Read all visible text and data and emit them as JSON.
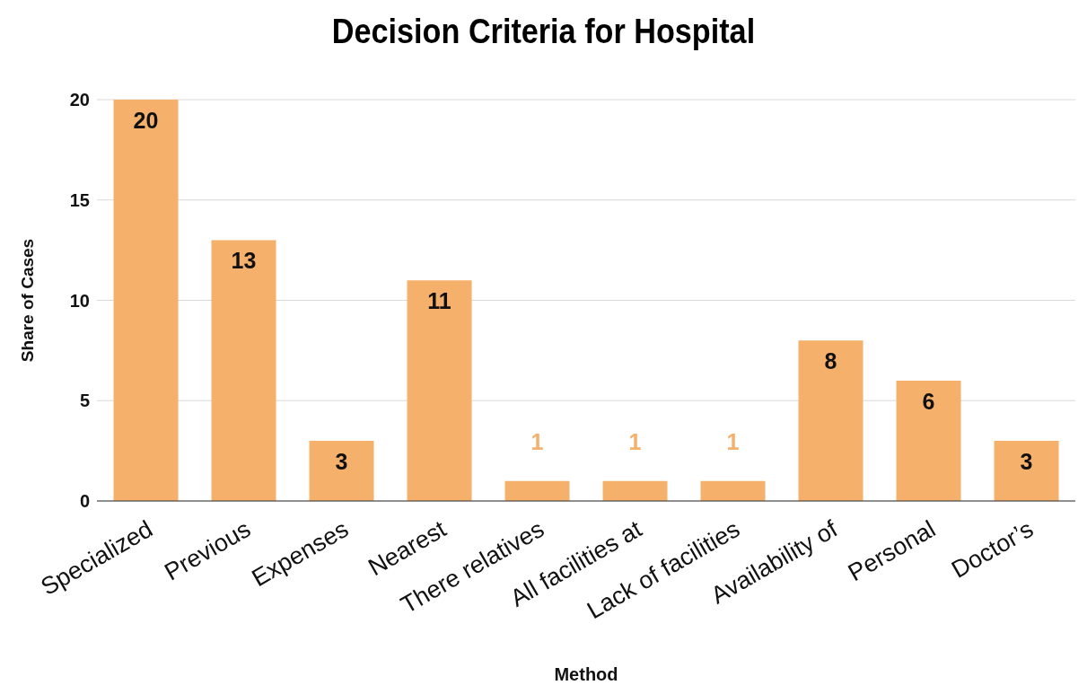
{
  "chart_data": {
    "type": "bar",
    "title": "Decision Criteria for Hospital",
    "xlabel": "Method",
    "ylabel": "Share of Cases",
    "categories": [
      "Specialized",
      "Previous",
      "Expenses",
      "Nearest",
      "There relatives",
      "All facilities at",
      "Lack of facilities",
      "Availability of",
      "Personal",
      "Doctor’s"
    ],
    "values": [
      20,
      13,
      3,
      11,
      1,
      1,
      1,
      8,
      6,
      3
    ],
    "color": "#f5b06b",
    "ylim": [
      0,
      20
    ],
    "yticks": [
      0,
      5,
      10,
      15,
      20
    ],
    "grid": "y",
    "data_labels": true
  }
}
